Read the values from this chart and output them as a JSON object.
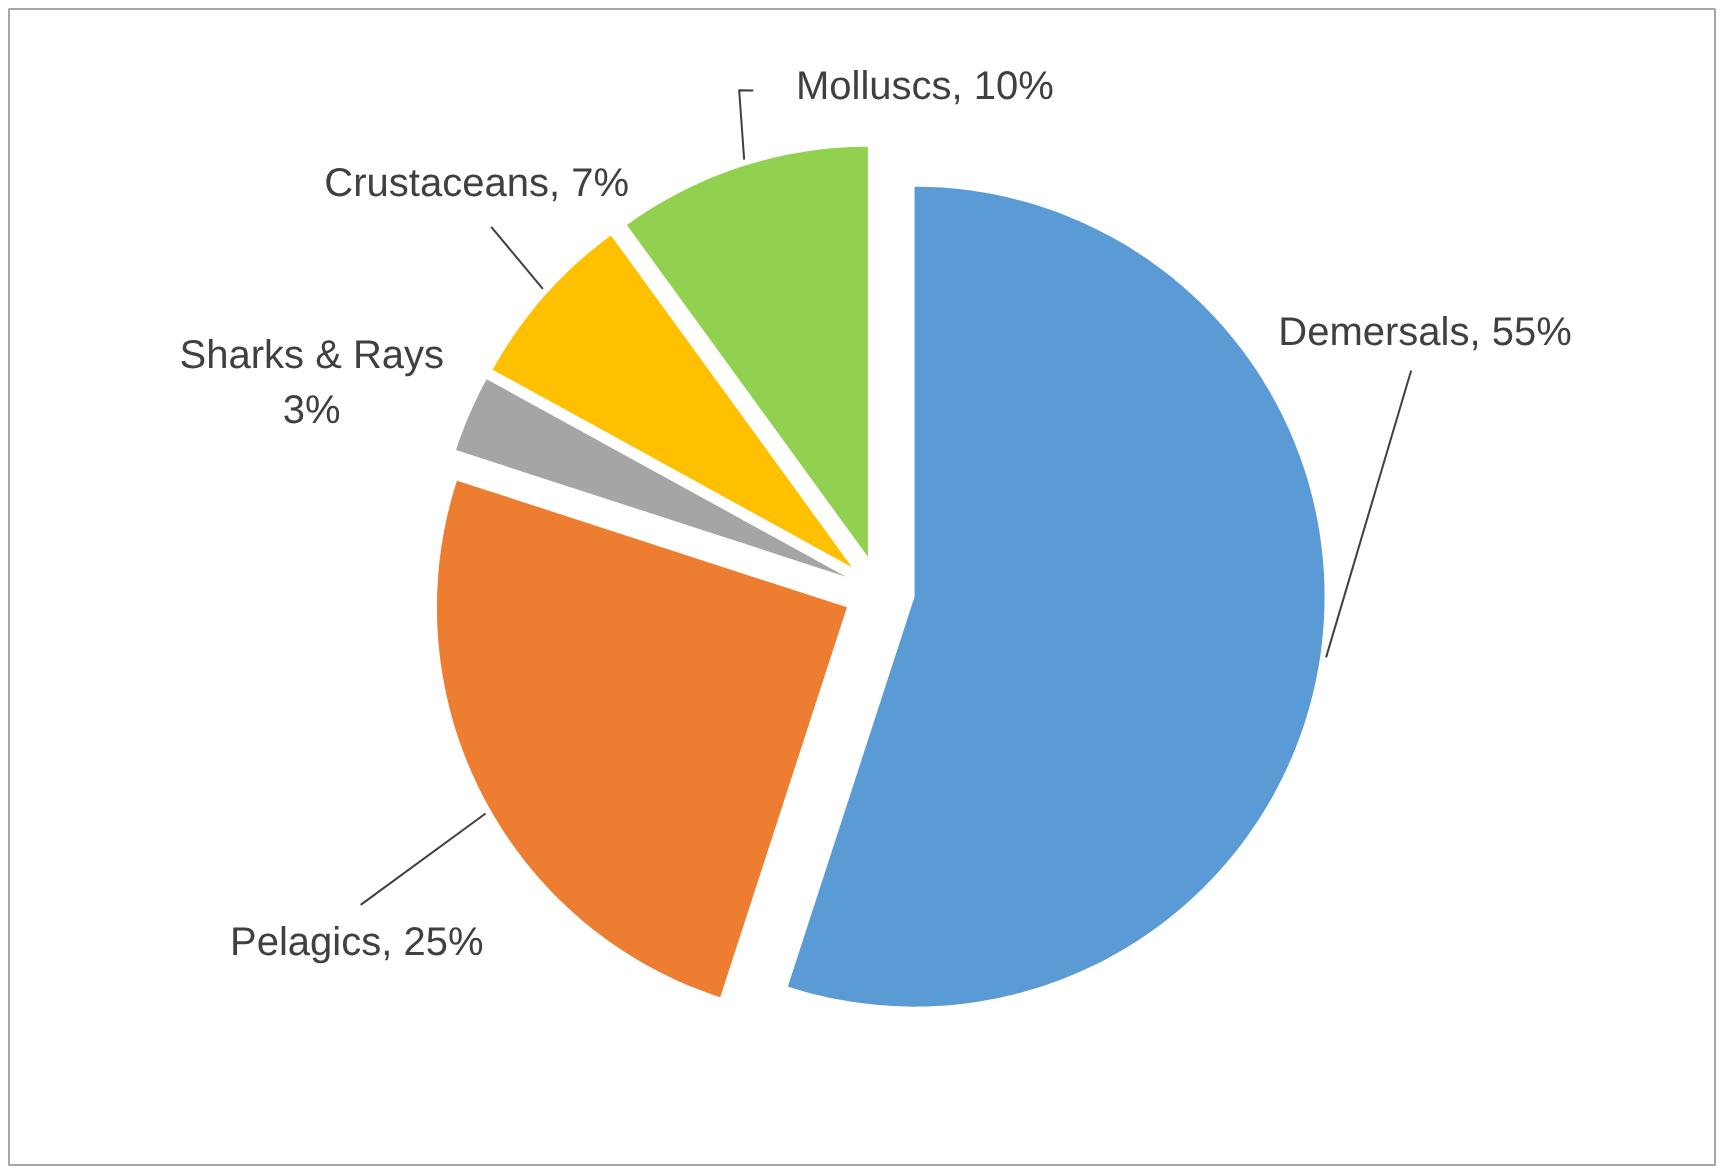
{
  "chart_data": {
    "type": "pie",
    "categories": [
      "Demersals",
      "Pelagics",
      "Sharks & Rays",
      "Crustaceans",
      "Molluscs"
    ],
    "values": [
      55,
      25,
      3,
      7,
      10
    ],
    "colors": [
      "#5b9bd5",
      "#ed7d31",
      "#a5a5a5",
      "#ffc000",
      "#92d050"
    ],
    "value_labels": [
      "55%",
      "25%",
      "3%",
      "7%",
      "10%"
    ]
  }
}
